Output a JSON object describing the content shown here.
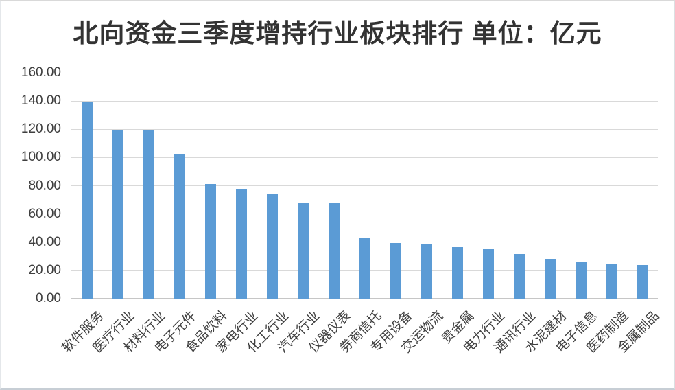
{
  "chart_data": {
    "type": "bar",
    "title": "北向资金三季度增持行业板块排行 单位：亿元",
    "unit": "亿元",
    "categories": [
      "软件服务",
      "医疗行业",
      "材料行业",
      "电子元件",
      "食品饮料",
      "家电行业",
      "化工行业",
      "汽车行业",
      "仪器仪表",
      "券商信托",
      "专用设备",
      "交运物流",
      "贵金属",
      "电力行业",
      "通讯行业",
      "水泥建材",
      "电子信息",
      "医药制造",
      "金属制品"
    ],
    "values": [
      139.4,
      119.0,
      119.0,
      102.0,
      81.3,
      77.8,
      74.0,
      68.2,
      67.7,
      43.2,
      39.3,
      38.8,
      36.3,
      35.0,
      31.7,
      28.2,
      25.7,
      24.5,
      23.7
    ],
    "xlabel": "",
    "ylabel": "",
    "ylim": [
      0,
      160
    ],
    "ytick_step": 20,
    "ytick_labels": [
      "0.00",
      "20.00",
      "40.00",
      "60.00",
      "80.00",
      "100.00",
      "120.00",
      "140.00",
      "160.00"
    ],
    "legend": "none",
    "grid": true,
    "colors": {
      "bar": "#5B9BD5",
      "gridline": "#D9D9D9",
      "axis_line": "#C6C6C6",
      "tick_text": "#3F3F3F",
      "title_text": "#333333"
    }
  }
}
